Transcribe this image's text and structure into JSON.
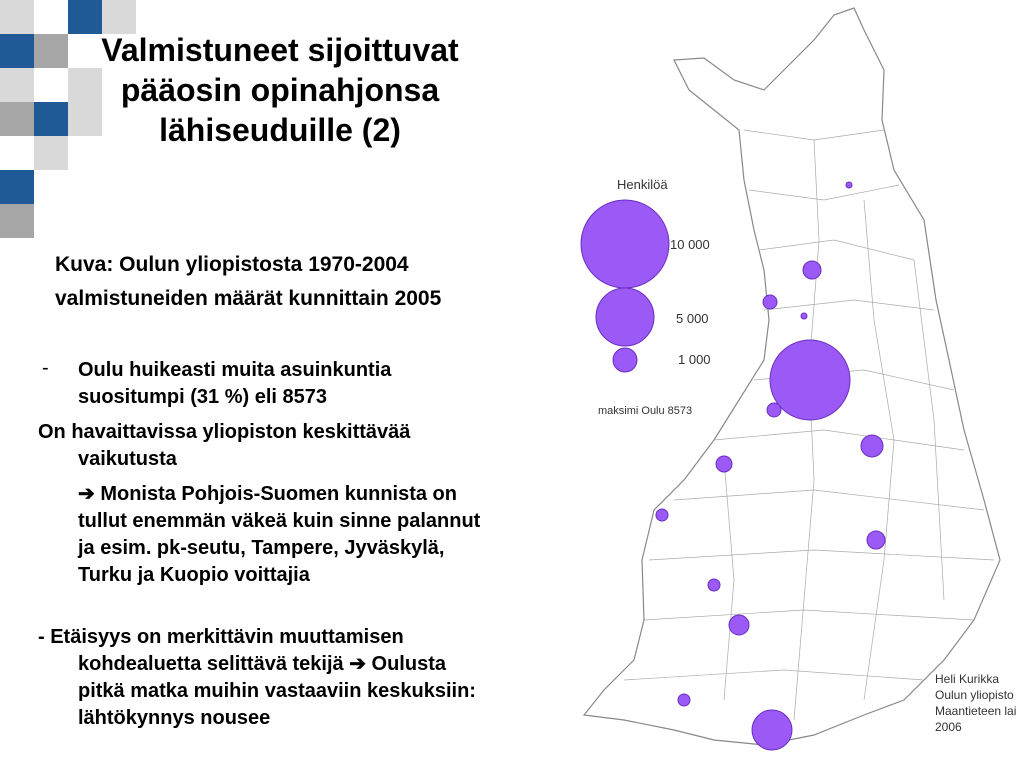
{
  "title": "Valmistuneet sijoittuvat pääosin opinahjonsa lähiseuduille (2)",
  "caption": "Kuva: Oulun yliopistosta 1970-2004 valmistuneiden määrät kunnittain 2005",
  "bullets": [
    {
      "marker": "-",
      "text": "Oulu huikeasti muita asuinkuntia suositumpi (31 %) eli 8573"
    },
    {
      "text": "On havaittavissa yliopiston keskittävää vaikutusta"
    },
    {
      "text": "➔ Monista Pohjois-Suomen kunnista on tullut enemmän väkeä kuin sinne palannut ja esim. pk-seutu, Tampere, Jyväskylä, Turku ja Kuopio voittajia"
    },
    {
      "text": "- Etäisyys on merkittävin muuttamisen kohdealuetta selittävä tekijä ➔ Oulusta pitkä matka muihin vastaaviin keskuksiin: lähtökynnys nousee"
    }
  ],
  "map": {
    "legend": {
      "title": "Henkilöä",
      "sizes": [
        "10 000",
        "5 000",
        "1 000"
      ],
      "max_note": "maksimi Oulu 8573"
    },
    "credit": [
      "Heli Kurikka",
      "Oulun yliopisto",
      "Maantieteen lai",
      "2006"
    ]
  }
}
